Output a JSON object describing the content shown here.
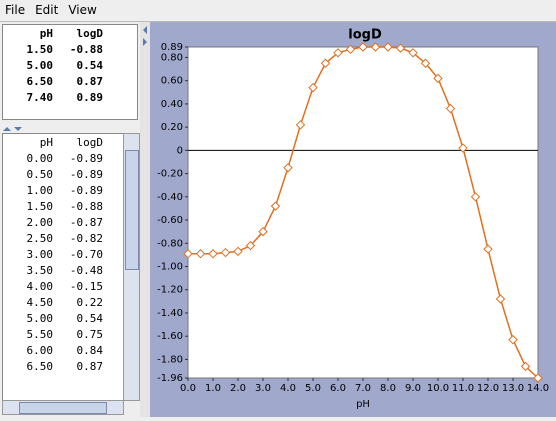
{
  "menu": [
    "File",
    "Edit",
    "View"
  ],
  "summary": {
    "headers": [
      "pH",
      "logD"
    ],
    "rows": [
      [
        "1.50",
        "-0.88"
      ],
      [
        "5.00",
        "0.54"
      ],
      [
        "6.50",
        "0.87"
      ],
      [
        "7.40",
        "0.89"
      ]
    ]
  },
  "table": {
    "headers": [
      "pH",
      "logD"
    ],
    "rows": [
      [
        "0.00",
        "-0.89"
      ],
      [
        "0.50",
        "-0.89"
      ],
      [
        "1.00",
        "-0.89"
      ],
      [
        "1.50",
        "-0.88"
      ],
      [
        "2.00",
        "-0.87"
      ],
      [
        "2.50",
        "-0.82"
      ],
      [
        "3.00",
        "-0.70"
      ],
      [
        "3.50",
        "-0.48"
      ],
      [
        "4.00",
        "-0.15"
      ],
      [
        "4.50",
        "0.22"
      ],
      [
        "5.00",
        "0.54"
      ],
      [
        "5.50",
        "0.75"
      ],
      [
        "6.00",
        "0.84"
      ],
      [
        "6.50",
        "0.87"
      ]
    ]
  },
  "chart_data": {
    "type": "line",
    "title": "logD",
    "x_label": "pH",
    "x": [
      0,
      0.5,
      1,
      1.5,
      2,
      2.5,
      3,
      3.5,
      4,
      4.5,
      5,
      5.5,
      6,
      6.5,
      7,
      7.5,
      8,
      8.5,
      9,
      9.5,
      10,
      10.5,
      11,
      11.5,
      12,
      12.5,
      13,
      13.5,
      14
    ],
    "series": [
      {
        "name": "logD",
        "color": "#e07020",
        "values": [
          -0.89,
          -0.89,
          -0.89,
          -0.88,
          -0.87,
          -0.82,
          -0.7,
          -0.48,
          -0.15,
          0.22,
          0.54,
          0.75,
          0.84,
          0.87,
          0.89,
          0.89,
          0.89,
          0.88,
          0.84,
          0.75,
          0.62,
          0.36,
          0.02,
          -0.4,
          -0.85,
          -1.28,
          -1.63,
          -1.86,
          -1.96
        ]
      }
    ],
    "xlim": [
      0,
      14
    ],
    "xticks": [
      {
        "value": 0,
        "label": "0.0"
      },
      {
        "value": 1,
        "label": "1.0"
      },
      {
        "value": 2,
        "label": "2.0"
      },
      {
        "value": 3,
        "label": "3.0"
      },
      {
        "value": 4,
        "label": "4.0"
      },
      {
        "value": 5,
        "label": "5.0"
      },
      {
        "value": 6,
        "label": "6.0"
      },
      {
        "value": 7,
        "label": "7.0"
      },
      {
        "value": 8,
        "label": "8.0"
      },
      {
        "value": 9,
        "label": "9.0"
      },
      {
        "value": 10,
        "label": "10.0"
      },
      {
        "value": 11,
        "label": "11.0"
      },
      {
        "value": 12,
        "label": "12.0"
      },
      {
        "value": 13,
        "label": "13.0"
      },
      {
        "value": 14,
        "label": "14.0"
      }
    ],
    "ylim": [
      -1.96,
      0.89
    ],
    "yticks": [
      0.89,
      {
        "value": 0.8,
        "label": "0.80"
      },
      {
        "value": 0.6,
        "label": "0.60"
      },
      {
        "value": 0.4,
        "label": "0.40"
      },
      {
        "value": 0.2,
        "label": "0.20"
      },
      0,
      {
        "value": -0.2,
        "label": "-0.20"
      },
      {
        "value": -0.4,
        "label": "-0.40"
      },
      {
        "value": -0.6,
        "label": "-0.60"
      },
      {
        "value": -0.8,
        "label": "-0.80"
      },
      {
        "value": -1,
        "label": "-1.00"
      },
      {
        "value": -1.2,
        "label": "-1.20"
      },
      {
        "value": -1.4,
        "label": "-1.40"
      },
      {
        "value": -1.6,
        "label": "-1.60"
      },
      {
        "value": -1.8,
        "label": "-1.80"
      },
      -1.96
    ]
  }
}
